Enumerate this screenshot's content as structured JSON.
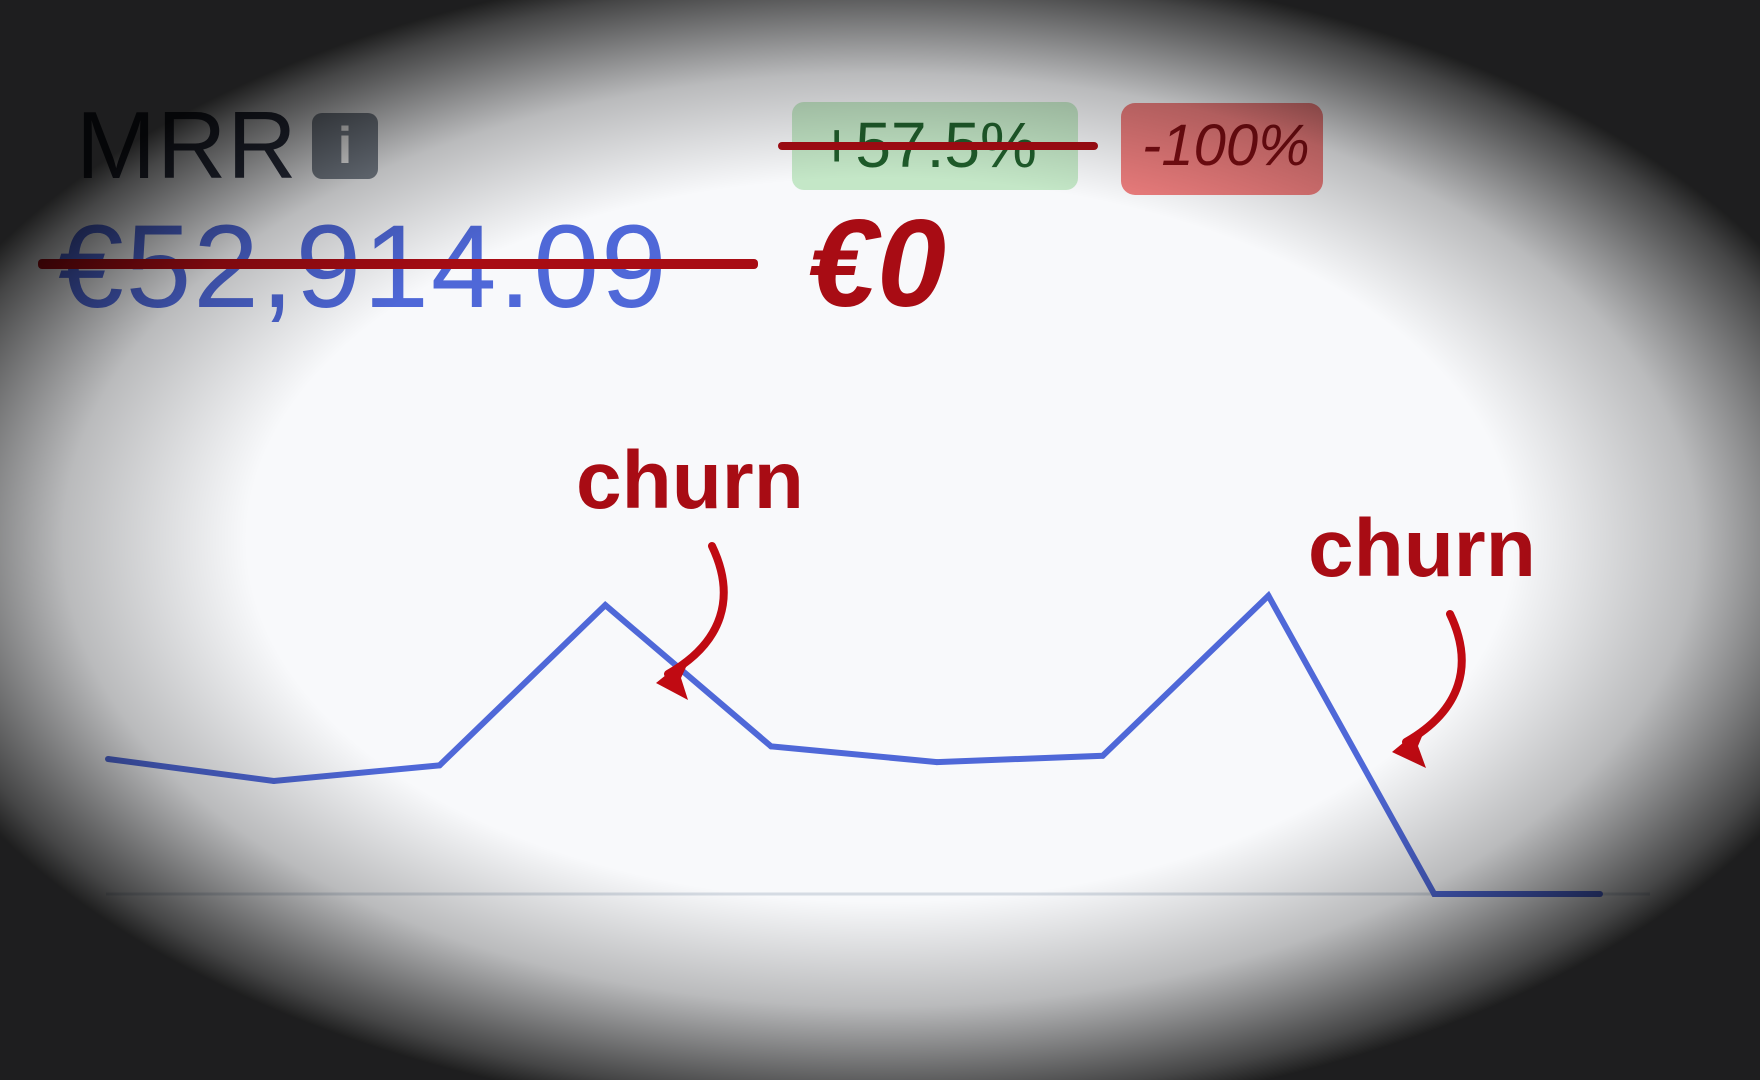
{
  "metric": {
    "title": "MRR",
    "info_icon": "info-icon",
    "old_value": "€52,914.09",
    "new_value": "€0"
  },
  "badges": {
    "old_change": "+57.5%",
    "new_change": "-100%"
  },
  "annotations": [
    {
      "label": "churn"
    },
    {
      "label": "churn"
    }
  ],
  "colors": {
    "line": "#4f68d8",
    "accent_red": "#a80c14",
    "badge_green": "#c4e7c7",
    "badge_red": "#ec7d7d"
  },
  "chart_data": {
    "type": "line",
    "title": "",
    "xlabel": "",
    "ylabel": "",
    "x": [
      1,
      2,
      3,
      4,
      5,
      6,
      7,
      8,
      9,
      10
    ],
    "y": [
      43,
      36,
      41,
      92,
      47,
      42,
      44,
      95,
      0,
      0
    ],
    "ylim": [
      0,
      100
    ],
    "grid": false
  }
}
